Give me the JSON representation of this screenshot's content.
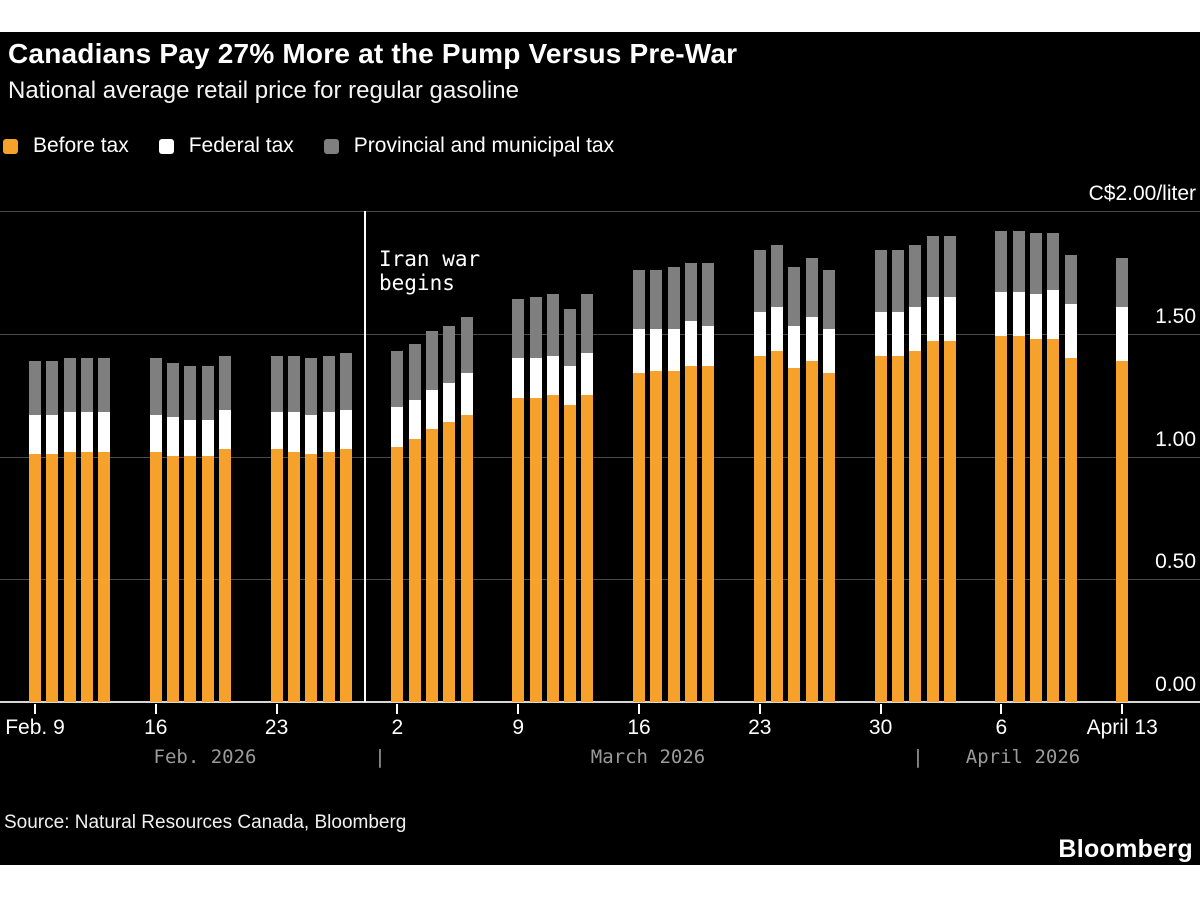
{
  "header": {
    "title": "Canadians Pay 27% More at the Pump Versus Pre-War",
    "subtitle": "National average retail price for regular gasoline"
  },
  "legend": {
    "items": [
      {
        "label": "Before tax",
        "color": "#F5A12B"
      },
      {
        "label": "Federal tax",
        "color": "#FFFFFF"
      },
      {
        "label": "Provincial and municipal tax",
        "color": "#7F7F7F"
      }
    ]
  },
  "chart_data": {
    "type": "bar",
    "stacked": true,
    "title": "Canadians Pay 27% More at the Pump Versus Pre-War",
    "subtitle": "National average retail price for regular gasoline",
    "unit_label": "C$2.00/liter",
    "ylabel": "C$/liter",
    "ylim": [
      0,
      2.0
    ],
    "grid": true,
    "legend_position": "top-left",
    "series_names": [
      "Before tax",
      "Federal tax",
      "Provincial and municipal tax"
    ],
    "colors": {
      "before_tax": "#F5A12B",
      "federal_tax": "#FFFFFF",
      "provincial_tax": "#7F7F7F",
      "gridline": "#4a4a4a",
      "axis": "#d6d6d6",
      "background": "#000000"
    },
    "yticks": [
      {
        "value": 1.5,
        "label": "1.50"
      },
      {
        "value": 1.0,
        "label": "1.00"
      },
      {
        "value": 0.5,
        "label": "0.50"
      },
      {
        "value": 0.0,
        "label": "0.00"
      }
    ],
    "gridline_values": [
      2.0,
      1.5,
      1.0,
      0.5
    ],
    "annotation": {
      "text": "Iran war\nbegins",
      "x_between": [
        "Feb. 27",
        "March 2"
      ]
    },
    "weeks": [
      {
        "tick_label": "Feb. 9",
        "bars": [
          [
            1.01,
            0.16,
            0.22
          ],
          [
            1.01,
            0.16,
            0.22
          ],
          [
            1.02,
            0.16,
            0.22
          ],
          [
            1.02,
            0.16,
            0.22
          ],
          [
            1.02,
            0.16,
            0.22
          ]
        ]
      },
      {
        "tick_label": "16",
        "bars": [
          [
            1.02,
            0.15,
            0.23
          ],
          [
            1.0,
            0.16,
            0.22
          ],
          [
            1.0,
            0.15,
            0.22
          ],
          [
            1.0,
            0.15,
            0.22
          ],
          [
            1.03,
            0.16,
            0.22
          ]
        ]
      },
      {
        "tick_label": "23",
        "bars": [
          [
            1.03,
            0.15,
            0.23
          ],
          [
            1.02,
            0.16,
            0.23
          ],
          [
            1.01,
            0.16,
            0.23
          ],
          [
            1.02,
            0.16,
            0.23
          ],
          [
            1.03,
            0.16,
            0.23
          ]
        ]
      },
      {
        "tick_label": "2",
        "bars": [
          [
            1.04,
            0.16,
            0.23
          ],
          [
            1.07,
            0.16,
            0.23
          ],
          [
            1.11,
            0.16,
            0.24
          ],
          [
            1.14,
            0.16,
            0.23
          ],
          [
            1.17,
            0.17,
            0.23
          ]
        ]
      },
      {
        "tick_label": "9",
        "bars": [
          [
            1.24,
            0.16,
            0.24
          ],
          [
            1.24,
            0.16,
            0.25
          ],
          [
            1.25,
            0.16,
            0.25
          ],
          [
            1.21,
            0.16,
            0.23
          ],
          [
            1.25,
            0.17,
            0.24
          ]
        ]
      },
      {
        "tick_label": "16",
        "bars": [
          [
            1.34,
            0.18,
            0.24
          ],
          [
            1.35,
            0.17,
            0.24
          ],
          [
            1.35,
            0.17,
            0.25
          ],
          [
            1.37,
            0.18,
            0.24
          ],
          [
            1.37,
            0.16,
            0.26
          ]
        ]
      },
      {
        "tick_label": "23",
        "bars": [
          [
            1.41,
            0.18,
            0.25
          ],
          [
            1.43,
            0.18,
            0.25
          ],
          [
            1.36,
            0.17,
            0.24
          ],
          [
            1.39,
            0.18,
            0.24
          ],
          [
            1.34,
            0.18,
            0.24
          ]
        ]
      },
      {
        "tick_label": "30",
        "bars": [
          [
            1.41,
            0.18,
            0.25
          ],
          [
            1.41,
            0.18,
            0.25
          ],
          [
            1.43,
            0.18,
            0.25
          ],
          [
            1.47,
            0.18,
            0.25
          ],
          [
            1.47,
            0.18,
            0.25
          ]
        ]
      },
      {
        "tick_label": "6",
        "bars": [
          [
            1.49,
            0.18,
            0.25
          ],
          [
            1.49,
            0.18,
            0.25
          ],
          [
            1.48,
            0.18,
            0.25
          ],
          [
            1.48,
            0.2,
            0.23
          ],
          [
            1.4,
            0.22,
            0.2
          ]
        ]
      },
      {
        "tick_label": "April 13",
        "bars": [
          [
            1.39,
            0.22,
            0.2
          ]
        ]
      }
    ],
    "month_row": [
      {
        "label": "Feb. 2026",
        "x": 205
      },
      {
        "label": "|",
        "x": 380
      },
      {
        "label": "March 2026",
        "x": 648
      },
      {
        "label": "|",
        "x": 918
      },
      {
        "label": "April 2026",
        "x": 1023
      }
    ]
  },
  "footer": {
    "source": "Source: Natural Resources Canada, Bloomberg",
    "logo": "Bloomberg"
  }
}
